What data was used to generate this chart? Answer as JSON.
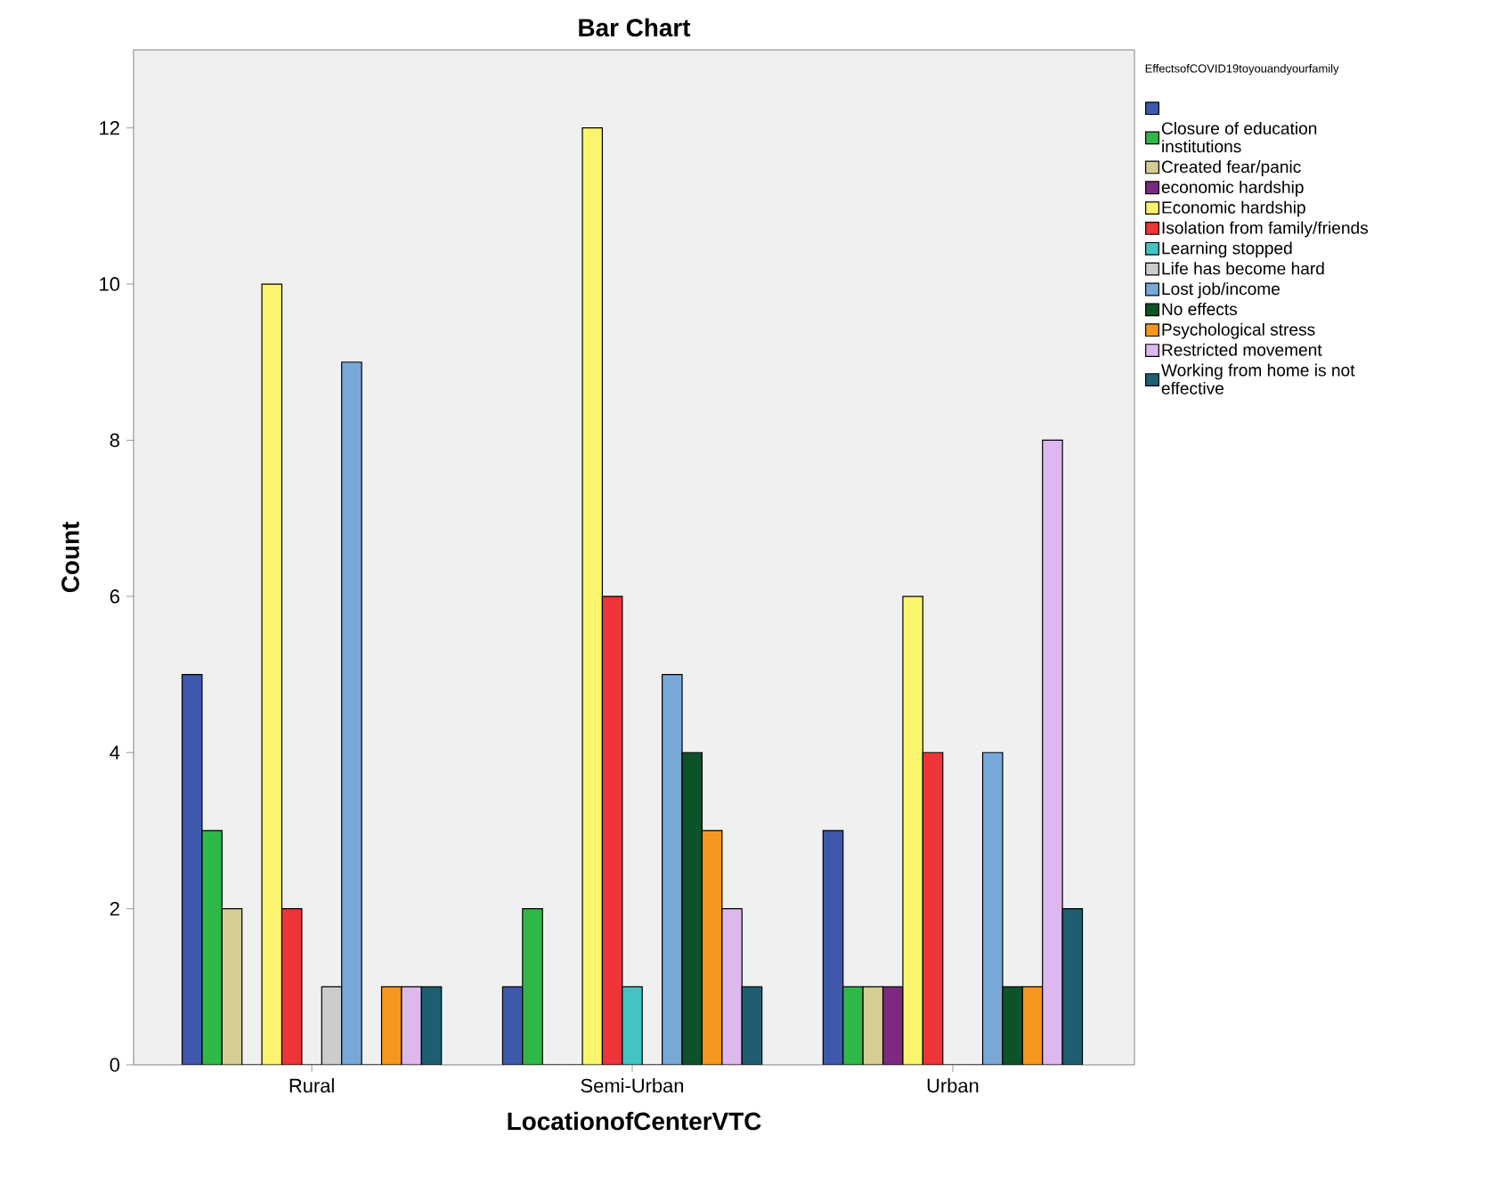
{
  "chart_data": {
    "type": "bar",
    "title": "Bar Chart",
    "xlabel": "LocationofCenterVTC",
    "ylabel": "Count",
    "legend_title": "EffectsofCOVID19toyouandyourfamily",
    "categories": [
      "Rural",
      "Semi-Urban",
      "Urban"
    ],
    "ylim": [
      0,
      13
    ],
    "yticks": [
      0,
      2,
      4,
      6,
      8,
      10,
      12
    ],
    "grid": false,
    "legend": "right",
    "series": [
      {
        "color": "#3e58ac",
        "values": [
          5,
          1,
          3
        ]
      },
      {
        "name": "Closure of education institutions",
        "color": "#2fb84a",
        "values": [
          3,
          2,
          1
        ]
      },
      {
        "name": "Created fear/panic",
        "color": "#d4cd96",
        "values": [
          2,
          0,
          1
        ]
      },
      {
        "name": "economic hardship",
        "color": "#7b2a80",
        "values": [
          0,
          0,
          1
        ]
      },
      {
        "name": "Economic hardship",
        "color": "#fbf56e",
        "values": [
          10,
          12,
          6
        ]
      },
      {
        "name": "Isolation from family/friends",
        "color": "#ee3439",
        "values": [
          2,
          6,
          4
        ]
      },
      {
        "name": "Learning stopped",
        "color": "#44c2c4",
        "values": [
          0,
          1,
          0
        ]
      },
      {
        "name": "Life has become hard",
        "color": "#cccccc",
        "values": [
          1,
          0,
          0
        ]
      },
      {
        "name": "Lost job/income",
        "color": "#77a8d8",
        "values": [
          9,
          5,
          4
        ]
      },
      {
        "name": "No effects",
        "color": "#0d5229",
        "values": [
          0,
          4,
          1
        ]
      },
      {
        "name": "Psychological stress",
        "color": "#f7961d",
        "values": [
          1,
          3,
          1
        ]
      },
      {
        "name": "Restricted movement",
        "color": "#ddb8ee",
        "values": [
          1,
          2,
          8
        ]
      },
      {
        "name": "Working from home is not effective",
        "color": "#1d5e73",
        "values": [
          1,
          1,
          2
        ]
      }
    ]
  }
}
